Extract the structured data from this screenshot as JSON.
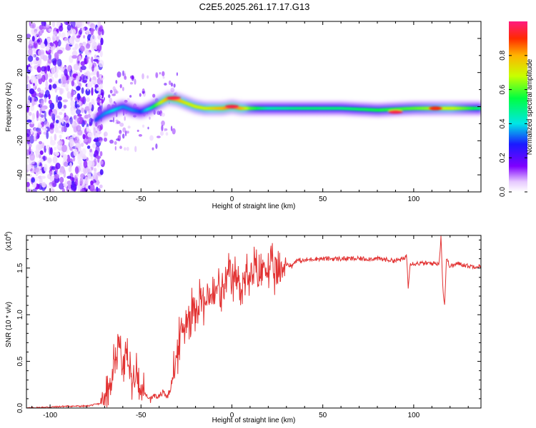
{
  "title": "C2E5.2025.261.17.17.G13",
  "chart_data": [
    {
      "type": "heatmap",
      "name": "spectrogram",
      "xlabel": "Height of straight line (km)",
      "ylabel": "Frequency (Hz)",
      "xlim": [
        -113,
        137
      ],
      "ylim": [
        -50,
        50
      ],
      "xticks": [
        -100,
        -50,
        0,
        50,
        100
      ],
      "yticks": [
        -40,
        -20,
        0,
        20,
        40
      ],
      "colorbar": {
        "label": "Normalized spectral amplitude",
        "range": [
          0,
          1
        ],
        "ticks": [
          "0.0",
          "0.2",
          "0.4",
          "0.6",
          "0.8"
        ],
        "tick_values": [
          0,
          0.2,
          0.4,
          0.6,
          0.8
        ]
      },
      "noise_region_x": [
        -113,
        -75
      ],
      "ridge": {
        "x": [
          -75,
          -70,
          -65,
          -60,
          -55,
          -50,
          -45,
          -40,
          -35,
          -30,
          -25,
          -20,
          -15,
          -10,
          -5,
          0,
          5,
          10,
          20,
          40,
          60,
          80,
          100,
          120,
          137
        ],
        "frequency": [
          -8,
          -4,
          -2,
          0,
          -2,
          -3,
          -1,
          2,
          5,
          4,
          2,
          0,
          -1,
          -1,
          -1,
          0,
          -1,
          -1,
          -1,
          -1,
          -1,
          -2,
          -1,
          -1,
          -1
        ],
        "amplitude": [
          0.3,
          0.35,
          0.4,
          0.35,
          0.35,
          0.3,
          0.45,
          0.65,
          0.85,
          0.8,
          0.7,
          0.7,
          0.7,
          0.75,
          0.8,
          0.85,
          0.8,
          0.6,
          0.45,
          0.5,
          0.5,
          0.55,
          0.6,
          0.7,
          0.5
        ]
      },
      "hotspots": [
        {
          "x": -32,
          "y": 5,
          "amplitude": 0.95
        },
        {
          "x": 0,
          "y": 0,
          "amplitude": 0.95
        },
        {
          "x": 90,
          "y": -3,
          "amplitude": 0.95
        },
        {
          "x": 112,
          "y": -1,
          "amplitude": 0.9
        }
      ]
    },
    {
      "type": "line",
      "name": "snr",
      "xlabel": "Height of straight line (km)",
      "ylabel": "SNR (10 * v/v)",
      "multiplier_label": "(x10",
      "multiplier_exponent": "4",
      "xlim": [
        -113,
        137
      ],
      "ylim": [
        0,
        1.85
      ],
      "xticks": [
        -100,
        -50,
        0,
        50,
        100
      ],
      "yticks": [
        "0.0",
        "0.5",
        "1.0",
        "1.5"
      ],
      "ytick_values": [
        0,
        0.5,
        1.0,
        1.5
      ],
      "color": "#e23232",
      "x": [
        -113,
        -100,
        -90,
        -80,
        -72,
        -68,
        -65,
        -62,
        -60,
        -58,
        -55,
        -52,
        -50,
        -48,
        -45,
        -42,
        -40,
        -38,
        -36,
        -34,
        -32,
        -30,
        -28,
        -25,
        -22,
        -20,
        -18,
        -15,
        -12,
        -10,
        -8,
        -5,
        -2,
        0,
        2,
        5,
        8,
        10,
        12,
        15,
        18,
        20,
        22,
        25,
        28,
        30,
        33,
        35,
        40,
        45,
        50,
        60,
        70,
        80,
        90,
        95,
        96,
        97,
        98,
        100,
        105,
        110,
        114,
        115,
        116,
        117,
        118,
        120,
        125,
        130,
        137
      ],
      "y": [
        0.0,
        0.01,
        0.02,
        0.02,
        0.05,
        0.2,
        0.5,
        0.7,
        0.45,
        0.6,
        0.3,
        0.4,
        0.2,
        0.15,
        0.1,
        0.15,
        0.1,
        0.18,
        0.12,
        0.2,
        0.35,
        0.6,
        0.8,
        0.95,
        1.05,
        1.1,
        1.2,
        1.1,
        1.25,
        1.15,
        1.3,
        1.2,
        1.4,
        1.35,
        1.4,
        1.3,
        1.45,
        1.3,
        1.5,
        1.4,
        1.55,
        1.45,
        1.5,
        1.4,
        1.5,
        1.55,
        1.52,
        1.58,
        1.58,
        1.6,
        1.6,
        1.6,
        1.6,
        1.6,
        1.58,
        1.6,
        1.65,
        1.3,
        1.55,
        1.55,
        1.55,
        1.55,
        1.55,
        1.85,
        1.3,
        1.1,
        1.6,
        1.52,
        1.55,
        1.52,
        1.52
      ]
    }
  ]
}
